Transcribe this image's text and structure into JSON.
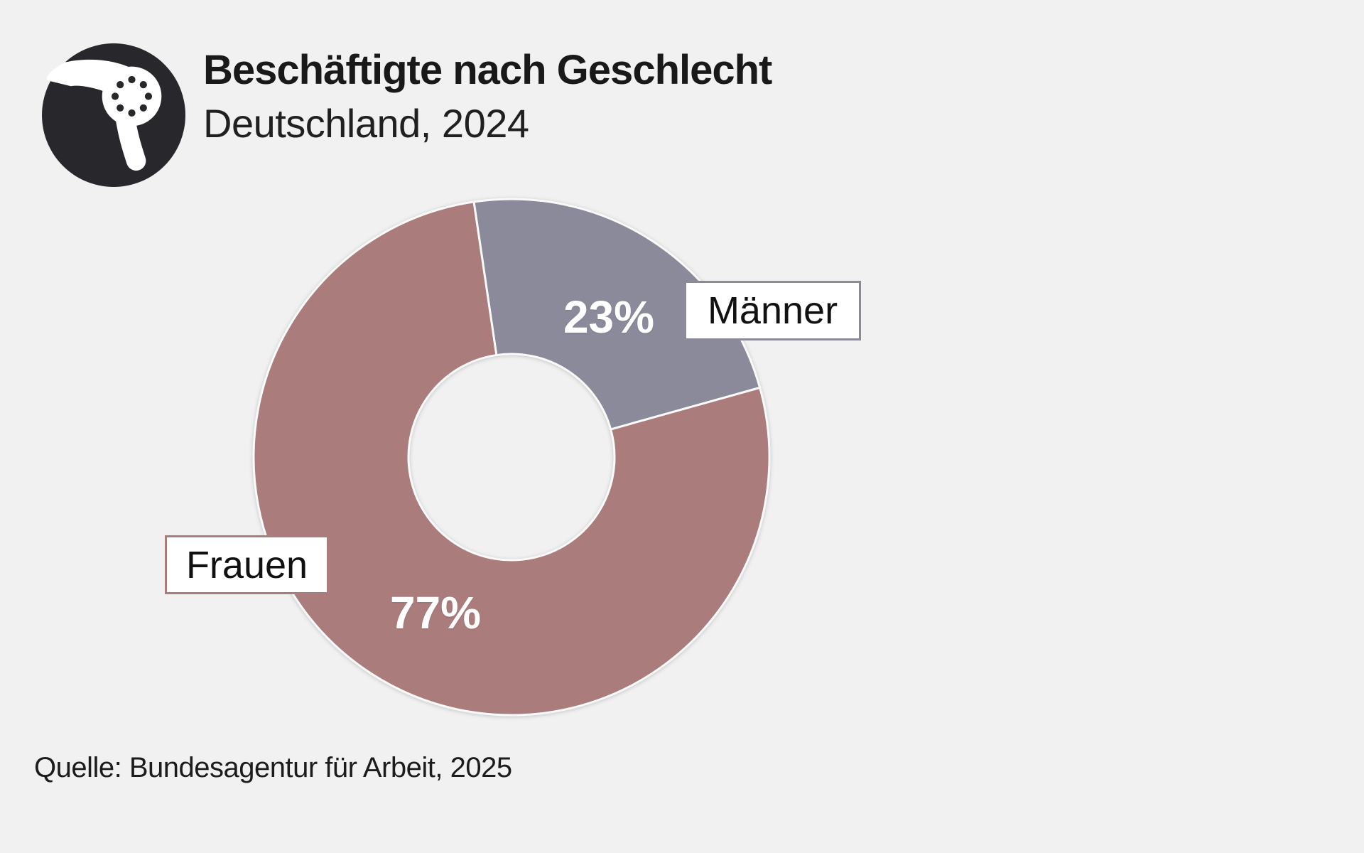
{
  "header": {
    "title": "Beschäftigte nach Geschlecht",
    "subtitle": "Deutschland, 2024"
  },
  "chart_data": {
    "type": "pie",
    "variant": "donut",
    "title": "Beschäftigte nach Geschlecht",
    "subtitle": "Deutschland, 2024",
    "start_angle_deg": -8.4,
    "hole_ratio": 0.4,
    "legend_position": "labels-on-chart",
    "slices": [
      {
        "label": "Männer",
        "value": 23,
        "value_label": "23%",
        "color": "#8a8a9b"
      },
      {
        "label": "Frauen",
        "value": 77,
        "value_label": "77%",
        "color": "#aa7c7c"
      }
    ]
  },
  "footer": {
    "source": "Quelle: Bundesagentur für Arbeit, 2025"
  },
  "colors": {
    "background": "#f1f1f2",
    "logo": "#28282c",
    "label_box_background": "#ffffff",
    "value_label_text": "#ffffff",
    "slice_separator": "#fafafa"
  }
}
